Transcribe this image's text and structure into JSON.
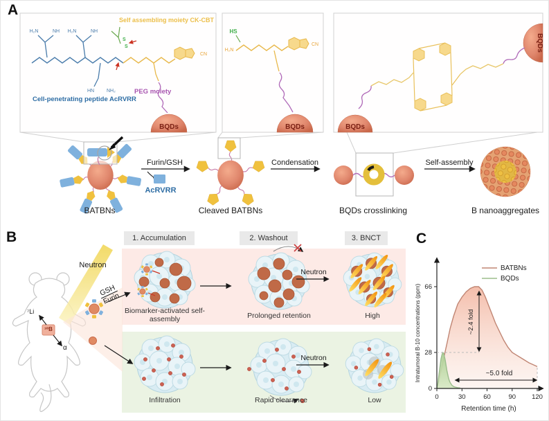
{
  "figure": {
    "panel_a": {
      "label": "A",
      "inset1": {
        "moiety": "Self assembling moiety CK-CBT",
        "peptide": "Cell-penetrating peptide AcRVRR",
        "peg": "PEG moiety",
        "bqds": "BQDs",
        "atoms": {
          "a1": "H₂N",
          "a2": "NH",
          "a3": "H₂N",
          "a4": "NH",
          "a5": "HN",
          "a6": "NH₂",
          "cn": "CN",
          "s1": "S",
          "s2": "S"
        }
      },
      "inset2": {
        "hs": "HS",
        "h2n": "H₂N",
        "cn": "CN",
        "bqds": "BQDs"
      },
      "inset3": {
        "bqds_left": "BQDs",
        "bqds_right": "BQDs"
      },
      "flow": {
        "arrow1": "Furin/GSH",
        "released": "AcRVRR",
        "arrow2": "Condensation",
        "arrow3": "Self-assembly",
        "captions": [
          "BATBNs",
          "Cleaved BATBNs",
          "BQDs crosslinking",
          "B nanoaggregates"
        ]
      }
    },
    "panel_b": {
      "label": "B",
      "neutron": "Neutron",
      "li": "⁷Li",
      "boron": "¹⁰B",
      "alpha": "α",
      "gsh": "GSH",
      "furin": "Furin",
      "headers": [
        "1. Accumulation",
        "2. Washout",
        "3. BNCT"
      ],
      "row1": {
        "caption1": "Biomarker-activated self-assembly",
        "caption2": "Prolonged retention",
        "caption3": "High",
        "neutron": "Neutron"
      },
      "row2": {
        "caption1": "Infiltration",
        "caption2": "Rapid clearance",
        "caption3": "Low",
        "neutron": "Neutron"
      }
    },
    "panel_c": {
      "label": "C"
    }
  },
  "chart_data": {
    "type": "area",
    "xlabel": "Retention time (h)",
    "ylabel": "Intratumoral B-10 concentrations (ppm)",
    "xlim": [
      0,
      130
    ],
    "ylim": [
      0,
      80
    ],
    "xticks": [
      0,
      30,
      60,
      90,
      120
    ],
    "yticks": [
      0,
      28,
      66
    ],
    "grid": false,
    "legend_position": "top-right",
    "series": [
      {
        "name": "BATBNs",
        "color": "#c08573",
        "points": [
          [
            0,
            0
          ],
          [
            2,
            5
          ],
          [
            4,
            11
          ],
          [
            6,
            17
          ],
          [
            8,
            23
          ],
          [
            12,
            33
          ],
          [
            16,
            42
          ],
          [
            20,
            49
          ],
          [
            25,
            56
          ],
          [
            30,
            60
          ],
          [
            35,
            63
          ],
          [
            40,
            65
          ],
          [
            45,
            66
          ],
          [
            50,
            66
          ],
          [
            54,
            64
          ],
          [
            58,
            60
          ],
          [
            62,
            55
          ],
          [
            66,
            50
          ],
          [
            70,
            45
          ],
          [
            75,
            40
          ],
          [
            80,
            35
          ],
          [
            85,
            31
          ],
          [
            90,
            28
          ],
          [
            95,
            26
          ],
          [
            100,
            24
          ],
          [
            105,
            22
          ],
          [
            110,
            20
          ],
          [
            115,
            18.5
          ],
          [
            120,
            17
          ]
        ]
      },
      {
        "name": "BQDs",
        "color": "#9bbd8c",
        "points": [
          [
            0,
            0
          ],
          [
            1,
            3
          ],
          [
            2,
            8
          ],
          [
            3,
            13
          ],
          [
            4,
            18
          ],
          [
            5,
            23
          ],
          [
            6,
            26
          ],
          [
            7,
            28
          ],
          [
            8,
            27.5
          ],
          [
            9,
            25
          ],
          [
            10,
            22
          ],
          [
            11,
            18
          ],
          [
            12,
            14
          ],
          [
            13,
            11
          ],
          [
            14,
            8
          ],
          [
            15,
            6
          ],
          [
            16,
            4.5
          ],
          [
            18,
            2.5
          ],
          [
            20,
            1.5
          ],
          [
            22,
            1
          ],
          [
            25,
            0.6
          ],
          [
            28,
            0.4
          ]
        ]
      }
    ],
    "annotations": [
      {
        "text": "~2.4 fold",
        "type": "vertical-double-arrow",
        "x": 50,
        "from_y": 28,
        "to_y": 66
      },
      {
        "text": "~5.0 fold",
        "type": "horizontal-double-arrow",
        "y": 5,
        "from_x": 22,
        "to_x": 120
      }
    ]
  },
  "colors": {
    "salmon_sphere": "#e0876d",
    "pentagon_yellow": "#f0c13e",
    "peptide_rect_blue": "#7fb1dd",
    "peg_purple": "#b06ab8",
    "peptide_text_blue": "#2e6da4",
    "moiety_text_orange": "#ecbf4a",
    "peg_text_purple": "#a855b0",
    "thiol_green": "#3fae49",
    "bqds_text_dark_red": "#7a2013",
    "pink_row_bg": "#fdeae6",
    "green_row_bg": "#ebf3e3",
    "header_bg": "#e9e9e9",
    "batbns_line": "#c08573",
    "bqds_line": "#9bbd8c",
    "cell_blue": "#d9ecf3",
    "tumor_brown": "#c06a47"
  }
}
